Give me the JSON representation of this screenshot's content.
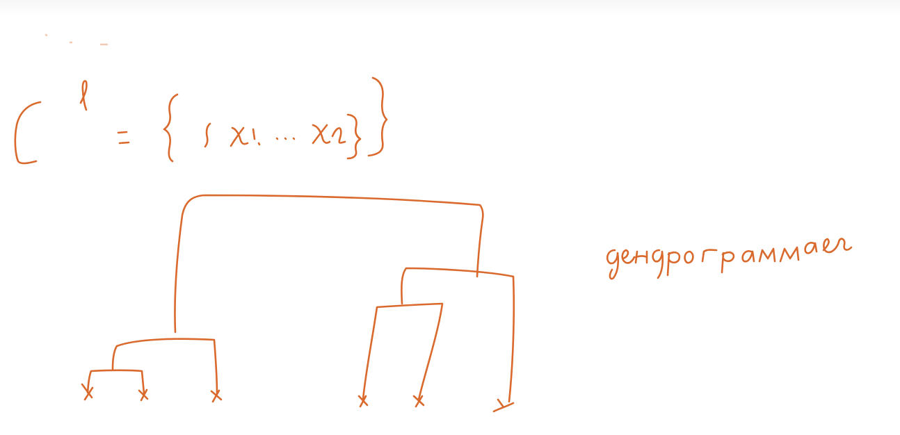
{
  "ink_color": "#d9692c",
  "formula_text": "C^l = { {x1,... xl} }",
  "dendrogram_label": "дендрограмма",
  "dendrogram": {
    "leaf_count": 6,
    "leaves": [
      "x",
      "x",
      "x",
      "x",
      "x",
      "x"
    ]
  }
}
